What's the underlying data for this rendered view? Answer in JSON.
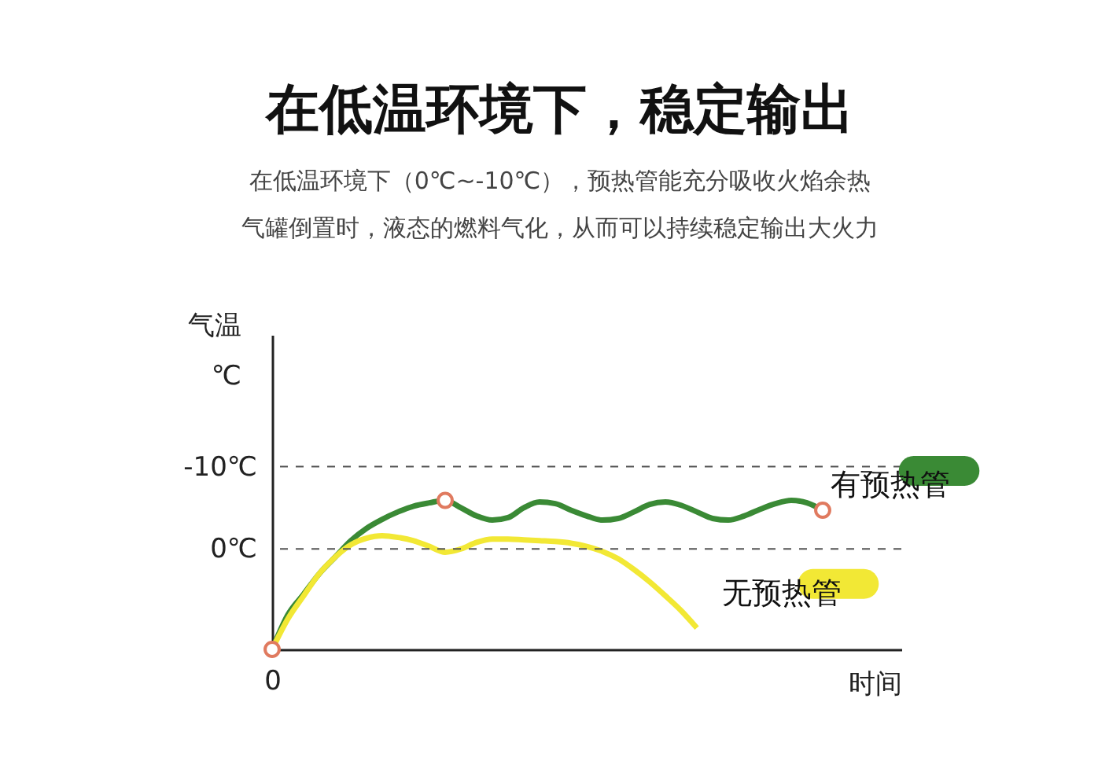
{
  "chart_data": {
    "type": "line",
    "title": "在低温环境下，稳定输出",
    "subtitle": "在低温环境下（0℃~-10℃），预热管能充分吸收火焰余热气罐倒置时，液态的燃料气化，从而可以持续稳定输出大火力",
    "xlabel": "时间",
    "ylabel": "气温\n℃",
    "categories": [
      "0",
      null,
      null,
      null,
      null,
      null,
      null,
      null,
      null,
      null,
      null,
      null,
      null,
      null,
      null,
      null,
      null,
      null,
      null,
      null,
      null,
      null,
      null,
      null,
      null,
      null,
      null,
      null,
      null,
      null,
      null,
      null,
      null,
      null,
      null,
      null,
      null,
      null,
      null,
      null,
      null
    ],
    "ylim": [
      12.2,
      -26
    ],
    "yticks": [
      {
        "value": -10,
        "label": "-10℃"
      },
      {
        "value": 0,
        "label": "0℃"
      }
    ],
    "legend": false,
    "line_style": "solid",
    "ref_lines": [
      {
        "axis": "y",
        "value": -10,
        "color": "#555555",
        "line_style": "dashed"
      },
      {
        "axis": "y",
        "value": 0,
        "color": "#555555",
        "line_style": "dashed"
      }
    ],
    "series": [
      {
        "name": "有预热管",
        "color": "#3a8a35",
        "values": [
          12.2,
          8,
          5.5,
          3,
          1,
          -1,
          -2.5,
          -3.6,
          -4.5,
          -5.2,
          -5.6,
          -5.9,
          -5,
          -4,
          -3.5,
          -3.8,
          -5,
          -5.7,
          -5.5,
          -4.7,
          -4,
          -3.5,
          -3.7,
          -4.5,
          -5.4,
          -5.7,
          -5.3,
          -4.5,
          -3.7,
          -3.5,
          -4,
          -4.8,
          -5.5,
          -5.9,
          -5.6,
          -4.7,
          null,
          null,
          null,
          null,
          null
        ]
      },
      {
        "name": "无预热管",
        "color": "#f2e835",
        "values": [
          12.2,
          8.5,
          5.7,
          3,
          1,
          -0.5,
          -1.3,
          -1.6,
          -1.4,
          -1,
          -0.3,
          0.4,
          0,
          -0.8,
          -1.2,
          -1.2,
          -1.1,
          -1,
          -0.9,
          -0.7,
          -0.3,
          0.3,
          1.2,
          2.5,
          4,
          5.7,
          7.5,
          9.6,
          null,
          null,
          null,
          null,
          null,
          null,
          null,
          null,
          null,
          null,
          null,
          null,
          null
        ]
      },
      {
        "type": "scatter",
        "marker": "circle",
        "color": "#e07a5f",
        "values": [
          12.2,
          null,
          null,
          null,
          null,
          null,
          null,
          null,
          null,
          null,
          null,
          -5.9,
          null,
          null,
          null,
          null,
          null,
          null,
          null,
          null,
          null,
          null,
          null,
          null,
          null,
          null,
          null,
          null,
          null,
          null,
          null,
          null,
          null,
          null,
          null,
          -4.7,
          null,
          null,
          null,
          null,
          null
        ]
      }
    ]
  }
}
